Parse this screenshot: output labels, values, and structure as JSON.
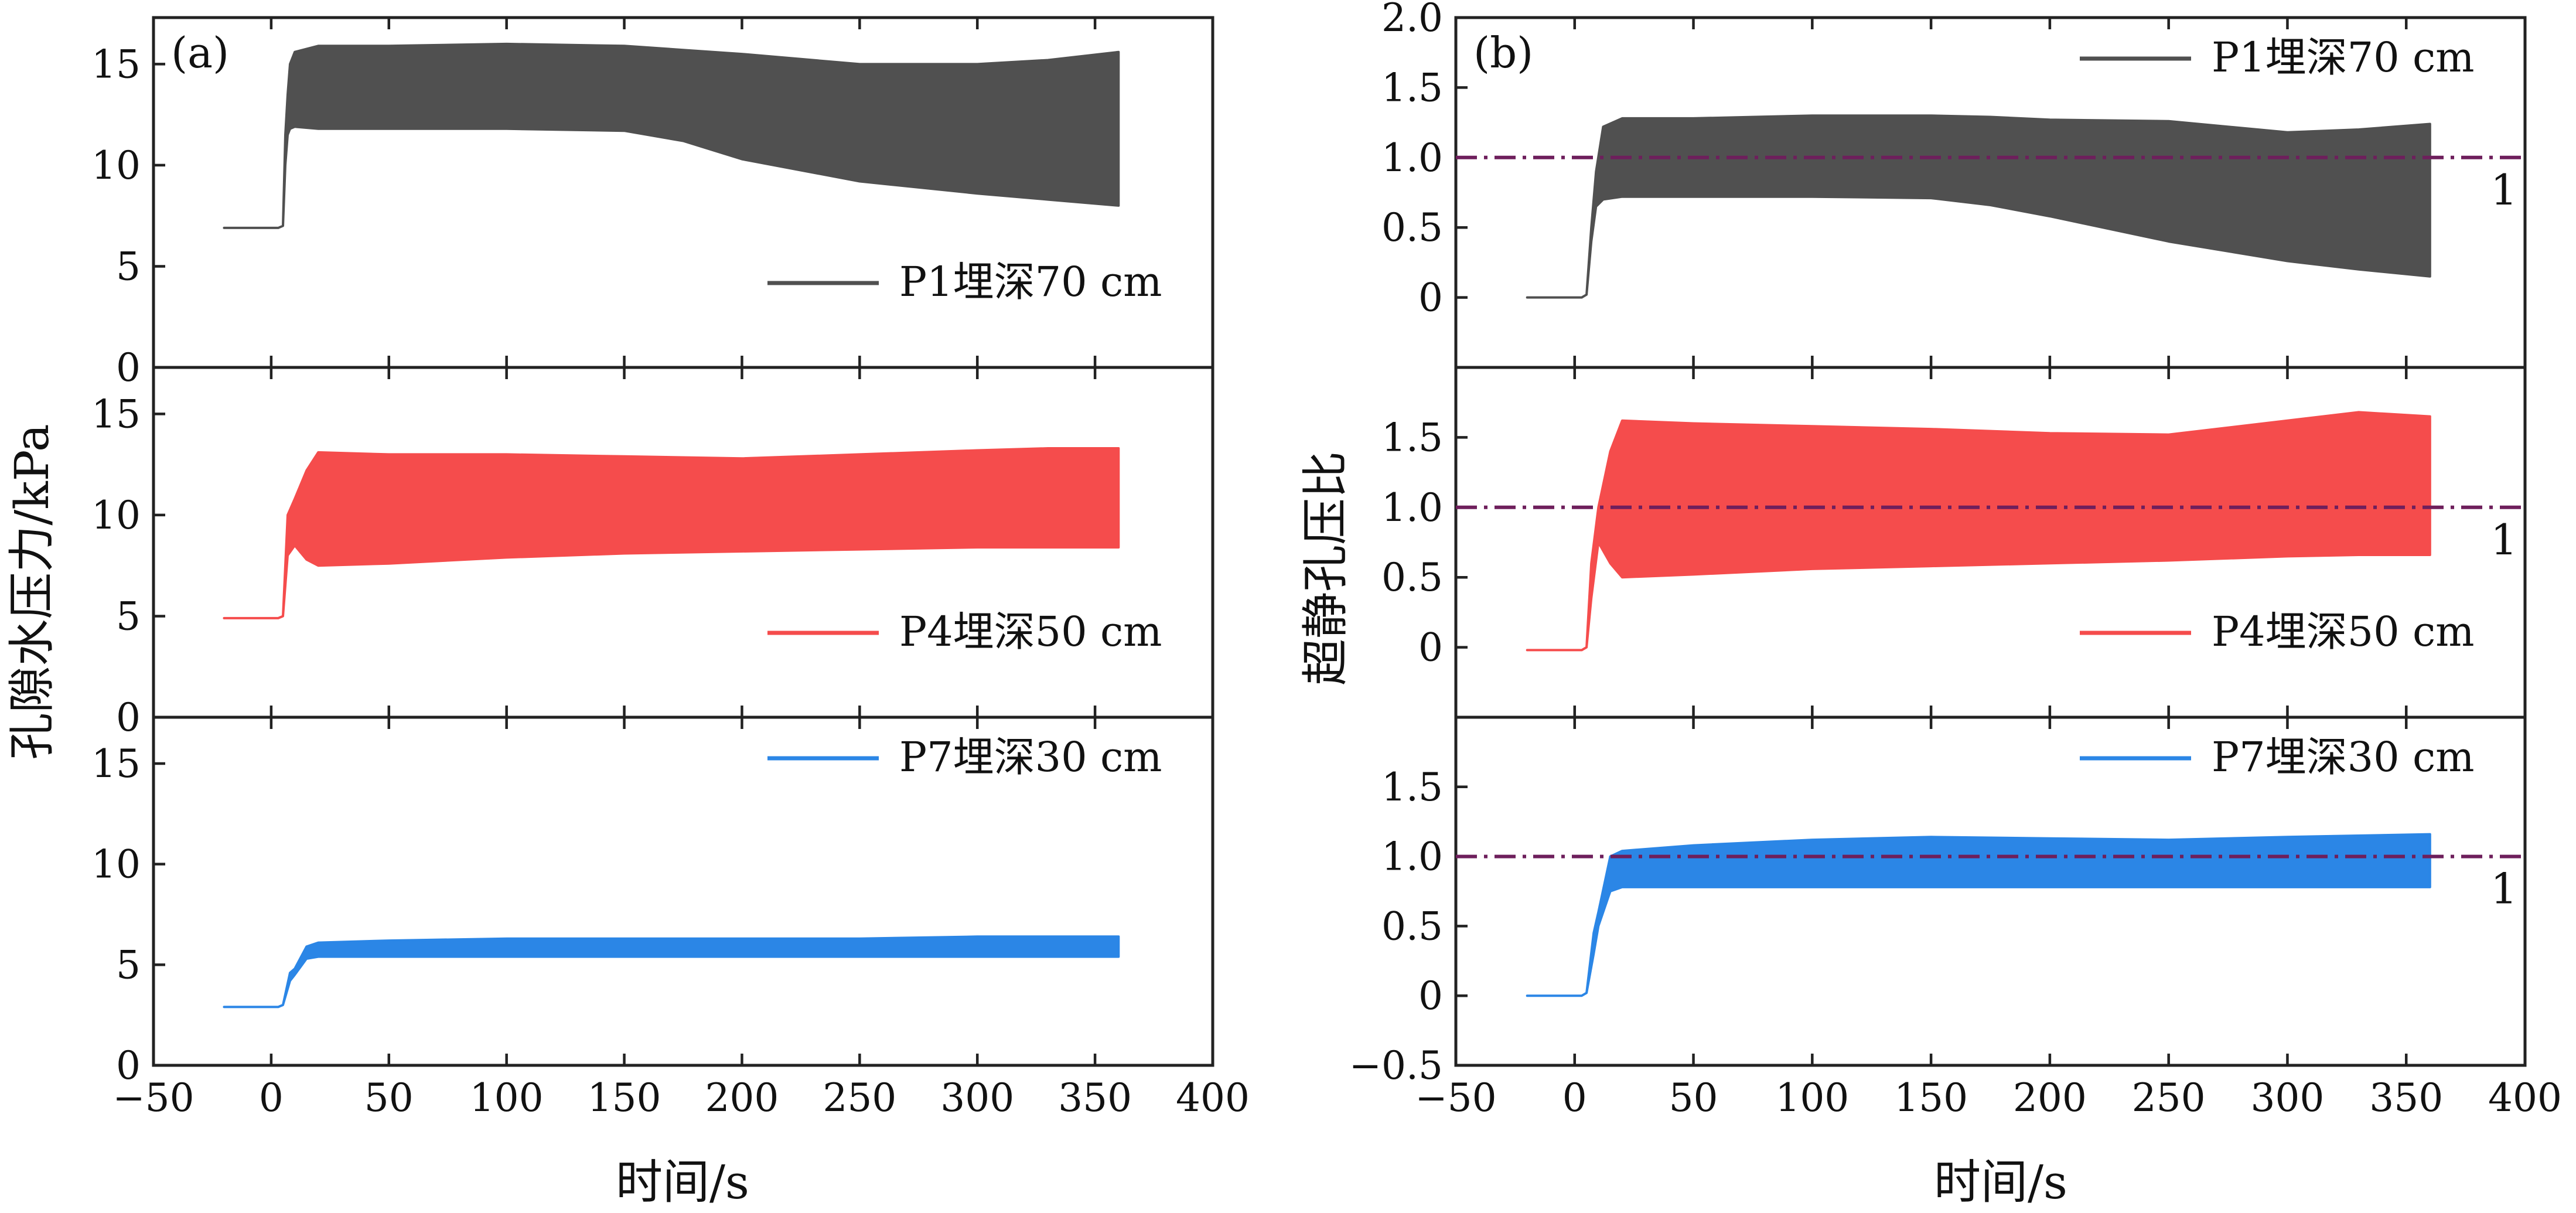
{
  "figure": {
    "x_title": "时间/s"
  },
  "colors": {
    "P1": "#505050",
    "P4": "#f54c4c",
    "P7": "#2b86e6",
    "ref": "#6e1f5c"
  },
  "chart_data": [
    {
      "type": "line",
      "panel": "a",
      "tag": "(a)",
      "ylabel": "孔隙水压力/kPa",
      "xlabel": "时间/s",
      "xlim": [
        -50,
        400
      ],
      "xticks": [
        -50,
        0,
        50,
        100,
        150,
        200,
        250,
        300,
        350,
        400
      ],
      "xtick_labels": [
        "−50",
        "0",
        "50",
        "100",
        "150",
        "200",
        "250",
        "300",
        "350",
        "400"
      ],
      "subplots": [
        {
          "key": "P1",
          "legend": "P1埋深70 cm",
          "legend_loc": "lower-right",
          "ylim": [
            0,
            17.3
          ],
          "yticks": [
            0,
            5,
            10,
            15
          ],
          "ytick_labels": [
            "0",
            "5",
            "10",
            "15"
          ],
          "series": {
            "t": [
              -20,
              3,
              5,
              6,
              7,
              8,
              10,
              20,
              50,
              100,
              150,
              175,
              200,
              250,
              300,
              330,
              360
            ],
            "upper": [
              6.9,
              6.9,
              7.0,
              11.5,
              13.5,
              15.0,
              15.6,
              15.9,
              15.9,
              16.0,
              15.9,
              15.7,
              15.5,
              15.0,
              15.0,
              15.2,
              15.6
            ],
            "lower": [
              6.9,
              6.9,
              7.0,
              10.0,
              11.5,
              11.8,
              11.9,
              11.8,
              11.8,
              11.8,
              11.7,
              11.2,
              10.3,
              9.2,
              8.6,
              8.3,
              8.0
            ]
          }
        },
        {
          "key": "P4",
          "legend": "P4埋深50 cm",
          "legend_loc": "lower-right",
          "ylim": [
            0,
            17.3
          ],
          "yticks": [
            0,
            5,
            10,
            15
          ],
          "ytick_labels": [
            "0",
            "5",
            "10",
            "15"
          ],
          "series": {
            "t": [
              -20,
              3,
              5,
              7,
              10,
              15,
              20,
              50,
              100,
              150,
              200,
              250,
              300,
              330,
              360
            ],
            "upper": [
              4.9,
              4.9,
              5.0,
              10.0,
              10.8,
              12.2,
              13.1,
              13.0,
              13.0,
              12.9,
              12.8,
              13.0,
              13.2,
              13.3,
              13.3
            ],
            "lower": [
              4.9,
              4.9,
              5.0,
              8.0,
              8.5,
              7.8,
              7.5,
              7.6,
              7.9,
              8.1,
              8.2,
              8.3,
              8.4,
              8.4,
              8.4
            ]
          }
        },
        {
          "key": "P7",
          "legend": "P7埋深30 cm",
          "legend_loc": "upper-right",
          "ylim": [
            0,
            17.3
          ],
          "yticks": [
            0,
            5,
            10,
            15
          ],
          "ytick_labels": [
            "0",
            "5",
            "10",
            "15"
          ],
          "series": {
            "t": [
              -20,
              3,
              5,
              8,
              10,
              15,
              20,
              50,
              100,
              150,
              200,
              250,
              300,
              360
            ],
            "upper": [
              2.9,
              2.9,
              3.0,
              4.6,
              4.8,
              5.9,
              6.1,
              6.2,
              6.3,
              6.3,
              6.3,
              6.3,
              6.4,
              6.4
            ],
            "lower": [
              2.9,
              2.9,
              3.0,
              4.2,
              4.5,
              5.3,
              5.4,
              5.4,
              5.4,
              5.4,
              5.4,
              5.4,
              5.4,
              5.4
            ]
          }
        }
      ]
    },
    {
      "type": "line",
      "panel": "b",
      "tag": "(b)",
      "ylabel": "超静孔压比",
      "xlabel": "时间/s",
      "xlim": [
        -50,
        400
      ],
      "xticks": [
        -50,
        0,
        50,
        100,
        150,
        200,
        250,
        300,
        350,
        400
      ],
      "xtick_labels": [
        "−50",
        "0",
        "50",
        "100",
        "150",
        "200",
        "250",
        "300",
        "350",
        "400"
      ],
      "subplots": [
        {
          "key": "P1",
          "legend": "P1埋深70 cm",
          "legend_loc": "upper-right",
          "ylim": [
            -0.5,
            2.0
          ],
          "yticks": [
            0,
            0.5,
            1.0,
            1.5,
            2.0
          ],
          "ytick_labels": [
            "0",
            "0.5",
            "1.0",
            "1.5",
            "2.0"
          ],
          "ref_line": 1.0,
          "ref_label": "1",
          "series": {
            "t": [
              -20,
              3,
              5,
              7,
              9,
              12,
              20,
              50,
              100,
              150,
              175,
              200,
              250,
              300,
              330,
              360
            ],
            "upper": [
              0.0,
              0.0,
              0.02,
              0.5,
              0.9,
              1.22,
              1.28,
              1.28,
              1.3,
              1.3,
              1.29,
              1.27,
              1.26,
              1.18,
              1.2,
              1.24
            ],
            "lower": [
              0.0,
              0.0,
              0.02,
              0.4,
              0.65,
              0.7,
              0.72,
              0.72,
              0.72,
              0.71,
              0.66,
              0.58,
              0.4,
              0.26,
              0.2,
              0.15
            ]
          }
        },
        {
          "key": "P4",
          "legend": "P4埋深50 cm",
          "legend_loc": "lower-right",
          "ylim": [
            -0.5,
            2.0
          ],
          "yticks": [
            0,
            0.5,
            1.0,
            1.5
          ],
          "ytick_labels": [
            "0",
            "0.5",
            "1.0",
            "1.5"
          ],
          "ref_line": 1.0,
          "ref_label": "1",
          "series": {
            "t": [
              -20,
              3,
              5,
              7,
              10,
              15,
              20,
              50,
              100,
              150,
              200,
              250,
              300,
              330,
              360
            ],
            "upper": [
              -0.02,
              -0.02,
              0.0,
              0.6,
              1.0,
              1.4,
              1.62,
              1.6,
              1.58,
              1.56,
              1.53,
              1.52,
              1.62,
              1.68,
              1.65
            ],
            "lower": [
              -0.02,
              -0.02,
              0.0,
              0.35,
              0.75,
              0.6,
              0.5,
              0.52,
              0.56,
              0.58,
              0.6,
              0.62,
              0.65,
              0.66,
              0.66
            ]
          }
        },
        {
          "key": "P7",
          "legend": "P7埋深30 cm",
          "legend_loc": "upper-right",
          "ylim": [
            -0.5,
            2.0
          ],
          "yticks": [
            -0.5,
            0,
            0.5,
            1.0,
            1.5
          ],
          "ytick_labels": [
            "−0.5",
            "0",
            "0.5",
            "1.0",
            "1.5"
          ],
          "ref_line": 1.0,
          "ref_label": "1",
          "series": {
            "t": [
              -20,
              3,
              5,
              8,
              10,
              15,
              20,
              50,
              100,
              150,
              200,
              250,
              300,
              360
            ],
            "upper": [
              0.0,
              0.0,
              0.02,
              0.45,
              0.6,
              1.0,
              1.04,
              1.08,
              1.12,
              1.14,
              1.13,
              1.12,
              1.14,
              1.16
            ],
            "lower": [
              0.0,
              0.0,
              0.02,
              0.3,
              0.5,
              0.75,
              0.78,
              0.78,
              0.78,
              0.78,
              0.78,
              0.78,
              0.78,
              0.78
            ]
          }
        }
      ]
    }
  ]
}
